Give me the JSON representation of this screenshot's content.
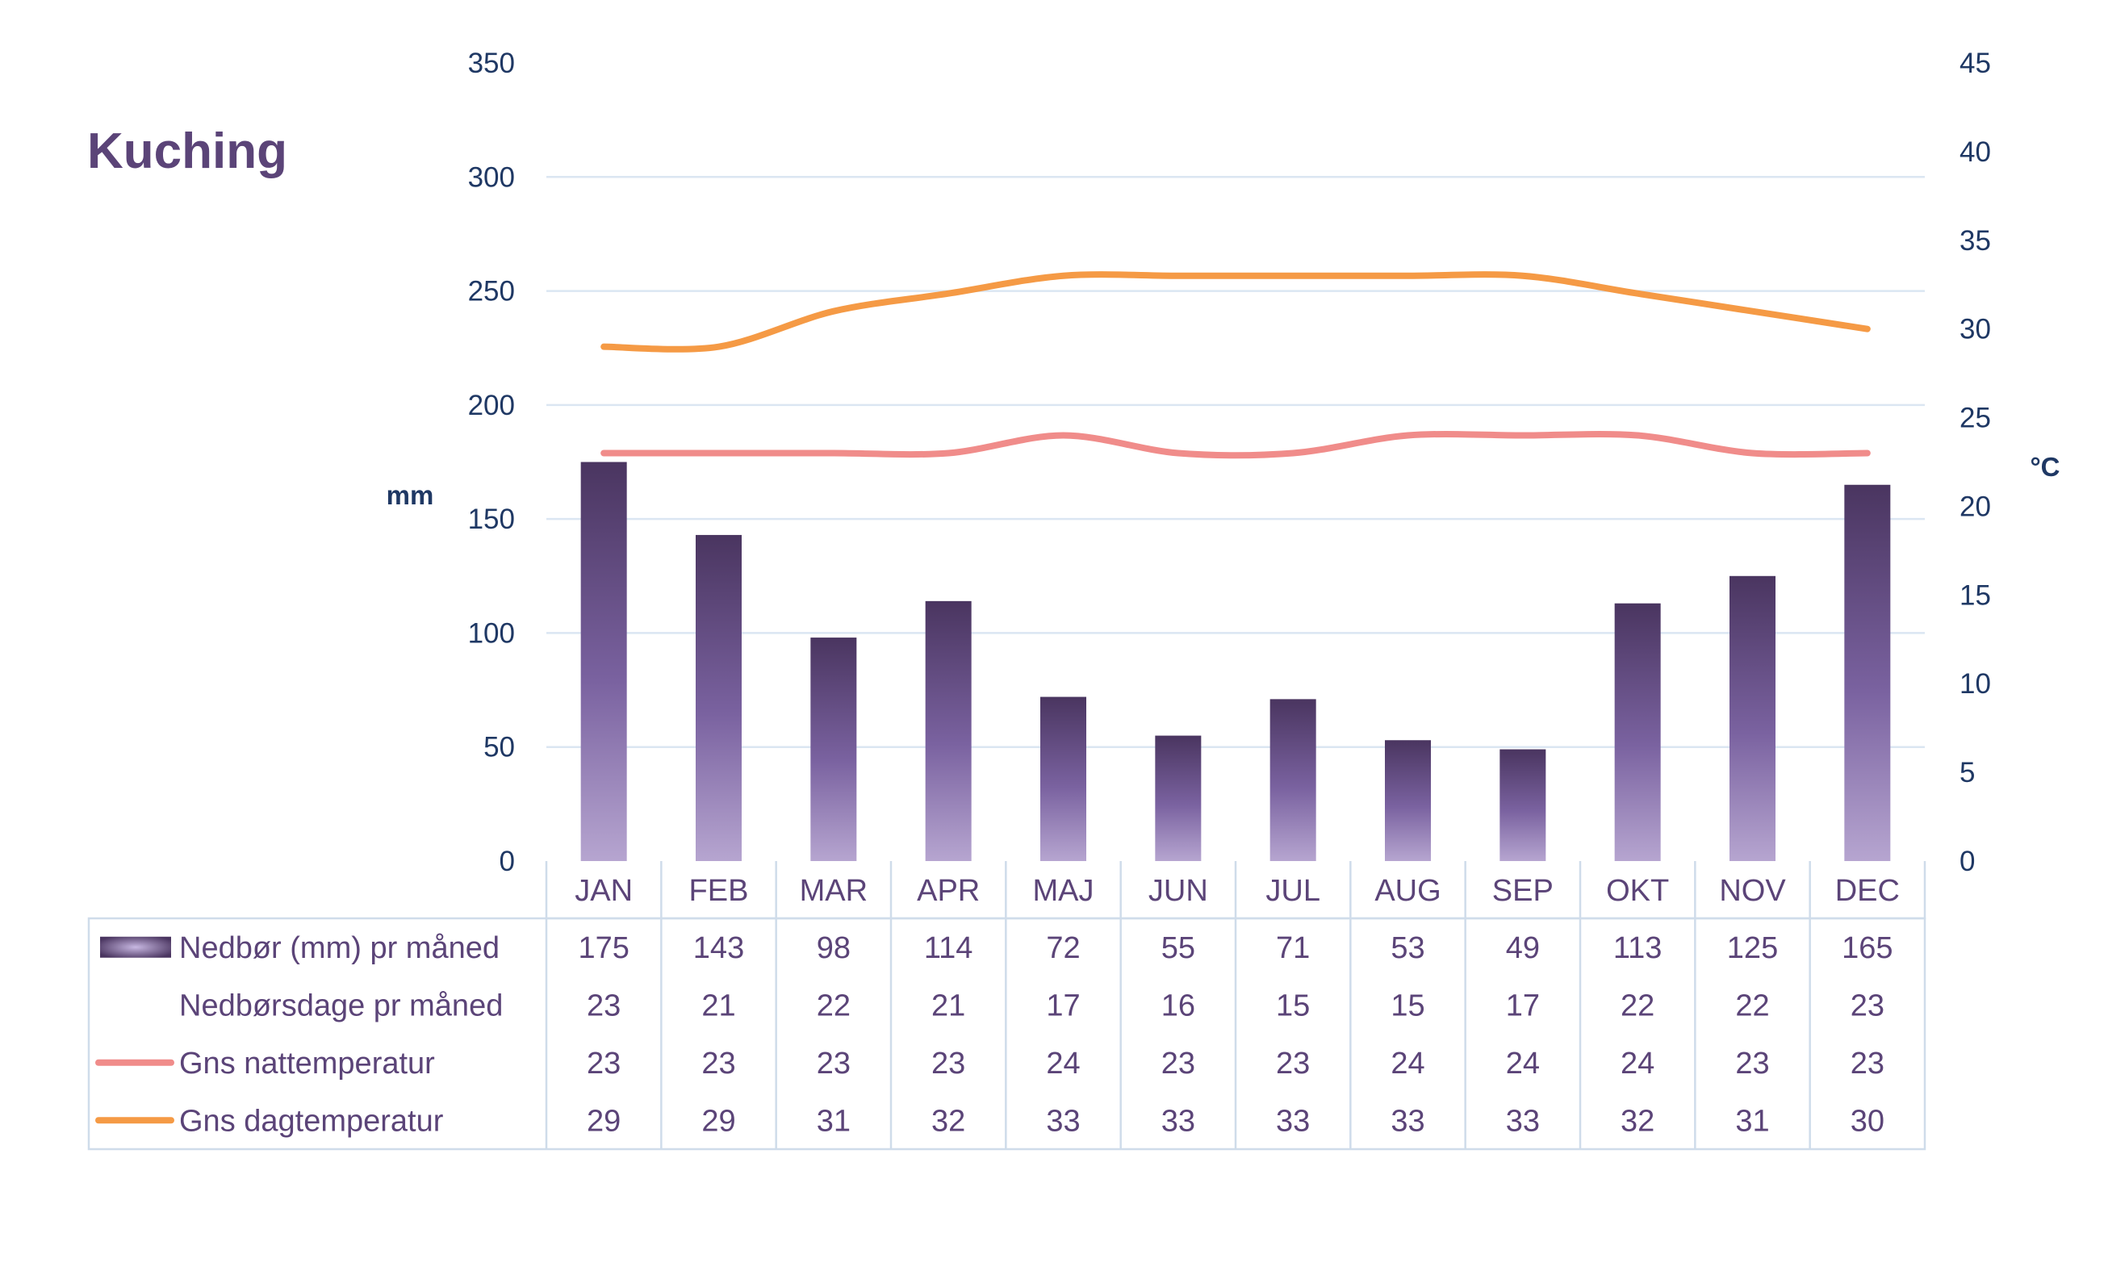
{
  "chart_data": {
    "type": "bar",
    "title": "Kuching",
    "categories": [
      "JAN",
      "FEB",
      "MAR",
      "APR",
      "MAJ",
      "JUN",
      "JUL",
      "AUG",
      "SEP",
      "OKT",
      "NOV",
      "DEC"
    ],
    "y_left": {
      "label": "mm",
      "ylim": [
        0,
        350
      ],
      "ticks": [
        0,
        50,
        100,
        150,
        200,
        250,
        300,
        350
      ]
    },
    "y_right": {
      "label": "°C",
      "ylim": [
        0,
        45
      ],
      "ticks": [
        0,
        5,
        10,
        15,
        20,
        25,
        30,
        35,
        40,
        45
      ]
    },
    "grid": true,
    "legend": "data-table-below",
    "series": [
      {
        "name": "Nedbør (mm) pr måned",
        "type": "bar",
        "axis": "left",
        "values": [
          175,
          143,
          98,
          114,
          72,
          55,
          71,
          53,
          49,
          113,
          125,
          165
        ],
        "color": "#5a4577"
      },
      {
        "name": "Nedbørsdage pr måned",
        "type": "table",
        "values": [
          23,
          21,
          22,
          21,
          17,
          16,
          15,
          15,
          17,
          22,
          22,
          23
        ]
      },
      {
        "name": "Gns nattemperatur",
        "type": "line",
        "axis": "right",
        "values": [
          23,
          23,
          23,
          23,
          24,
          23,
          23,
          24,
          24,
          24,
          23,
          23
        ],
        "color": "#f08c8a"
      },
      {
        "name": "Gns dagtemperatur",
        "type": "line",
        "axis": "right",
        "values": [
          29,
          29,
          31,
          32,
          33,
          33,
          33,
          33,
          33,
          32,
          31,
          30
        ],
        "color": "#f59a45"
      }
    ]
  }
}
